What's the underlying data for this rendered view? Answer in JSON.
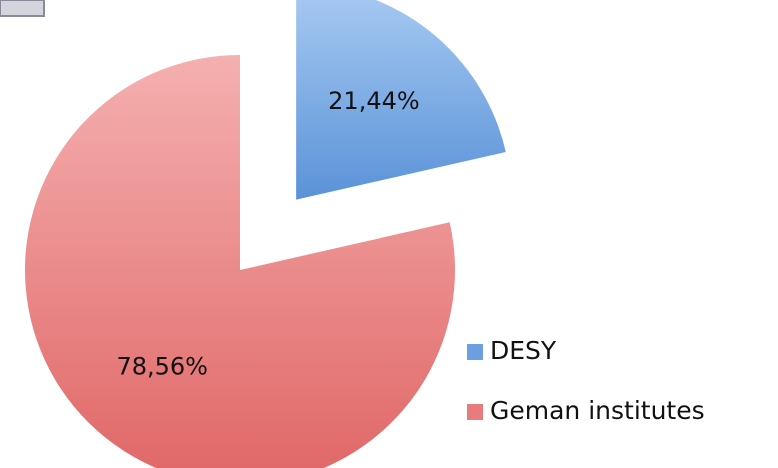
{
  "chart_data": {
    "type": "pie",
    "categories": [
      "DESY",
      "Geman institutes"
    ],
    "values": [
      21.44,
      78.56
    ],
    "value_labels": [
      "21,44%",
      "78,56%"
    ],
    "colors": [
      "#6b9fe0",
      "#e87c7c"
    ]
  }
}
